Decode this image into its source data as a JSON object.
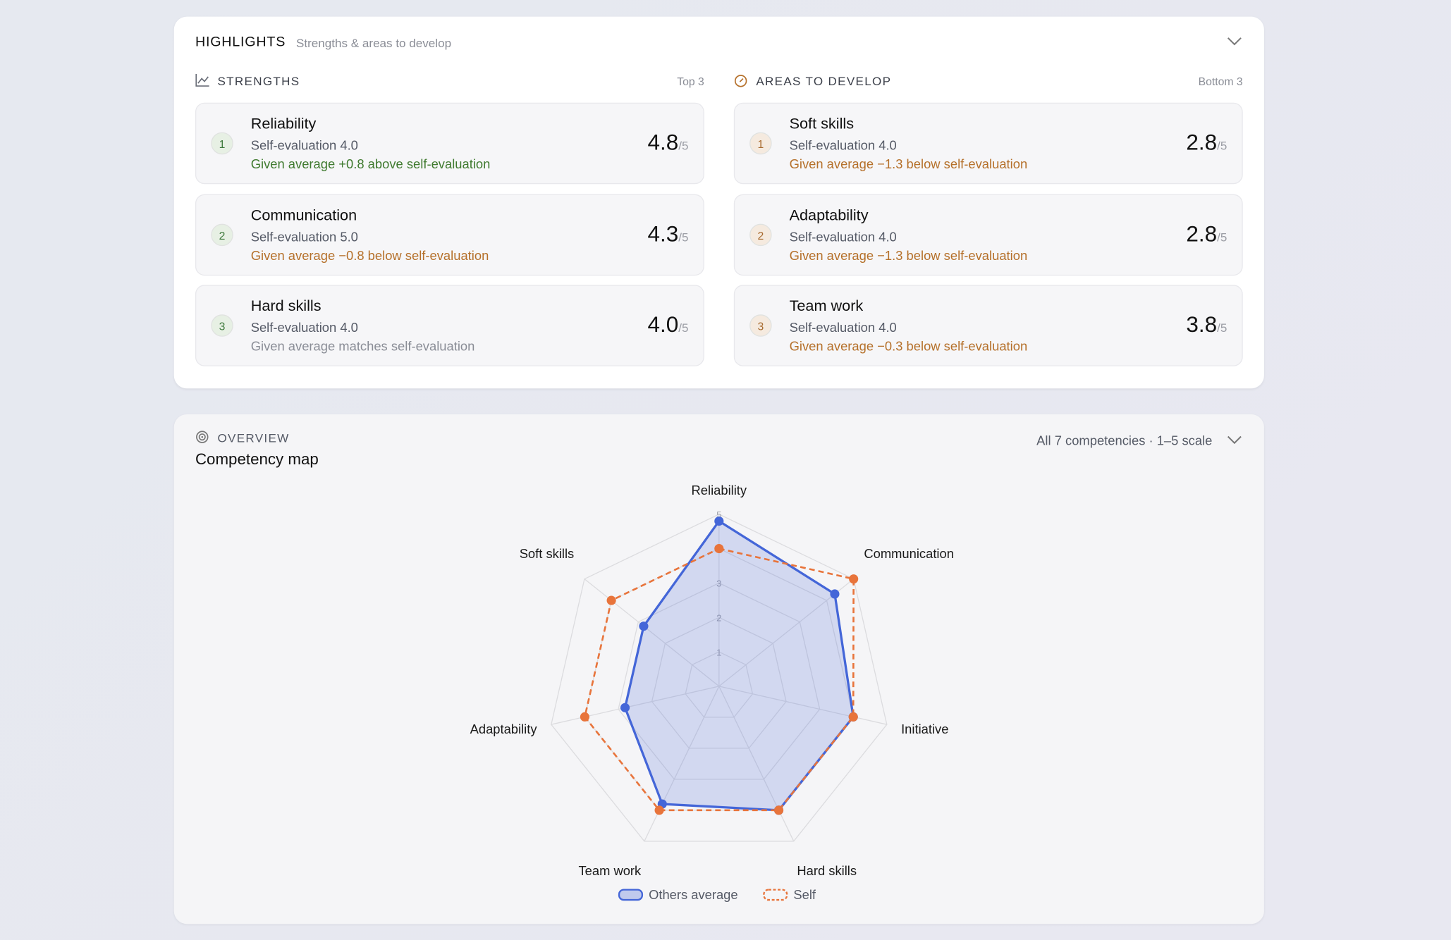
{
  "highlights": {
    "title": "HIGHLIGHTS",
    "subtitle": "Strengths & areas to develop",
    "groups": [
      {
        "title": "STRENGTHS",
        "note": "Top 3",
        "badge_color": "#3f7a3d",
        "badge_bg": "#e7f0e4",
        "items": [
          {
            "rank": "1",
            "name": "Reliability",
            "self": "Self-evaluation 4.0",
            "delta": "Given average +0.8 above self-evaluation",
            "delta_color": "#3f7a2f",
            "score": "4.8",
            "scale": "/5"
          },
          {
            "rank": "2",
            "name": "Communication",
            "self": "Self-evaluation 5.0",
            "delta": "Given average −0.8 below self-evaluation",
            "delta_color": "#b5702a",
            "score": "4.3",
            "scale": "/5"
          },
          {
            "rank": "3",
            "name": "Hard skills",
            "self": "Self-evaluation 4.0",
            "delta": "Given average matches self-evaluation",
            "delta_color": "#8a8d96",
            "score": "4.0",
            "scale": "/5"
          }
        ]
      },
      {
        "title": "AREAS TO DEVELOP",
        "note": "Bottom 3",
        "badge_color": "#a86a2e",
        "badge_bg": "#f5eadf",
        "items": [
          {
            "rank": "1",
            "name": "Soft skills",
            "self": "Self-evaluation 4.0",
            "delta": "Given average −1.3 below self-evaluation",
            "delta_color": "#b5702a",
            "score": "2.8",
            "scale": "/5"
          },
          {
            "rank": "2",
            "name": "Adaptability",
            "self": "Self-evaluation 4.0",
            "delta": "Given average −1.3 below self-evaluation",
            "delta_color": "#b5702a",
            "score": "2.8",
            "scale": "/5"
          },
          {
            "rank": "3",
            "name": "Team work",
            "self": "Self-evaluation 4.0",
            "delta": "Given average −0.3 below self-evaluation",
            "delta_color": "#b5702a",
            "score": "3.8",
            "scale": "/5"
          }
        ]
      }
    ]
  },
  "overview": {
    "label": "OVERVIEW",
    "title": "Competency map",
    "note": "All 7 competencies · 1–5 scale"
  },
  "chart_data": {
    "type": "radar",
    "categories": [
      "Reliability",
      "Communication",
      "Initiative",
      "Hard skills",
      "Team work",
      "Adaptability",
      "Soft skills"
    ],
    "series": [
      {
        "name": "Others average",
        "color": "#4466d8",
        "values": [
          4.8,
          4.3,
          4.0,
          4.0,
          3.8,
          2.8,
          2.8
        ]
      },
      {
        "name": "Self",
        "color": "#e8743b",
        "values": [
          4.0,
          5.0,
          4.0,
          4.0,
          4.0,
          4.0,
          4.0
        ]
      }
    ],
    "rlim": [
      0,
      5
    ],
    "rticks": [
      1,
      2,
      3,
      4,
      5
    ]
  }
}
